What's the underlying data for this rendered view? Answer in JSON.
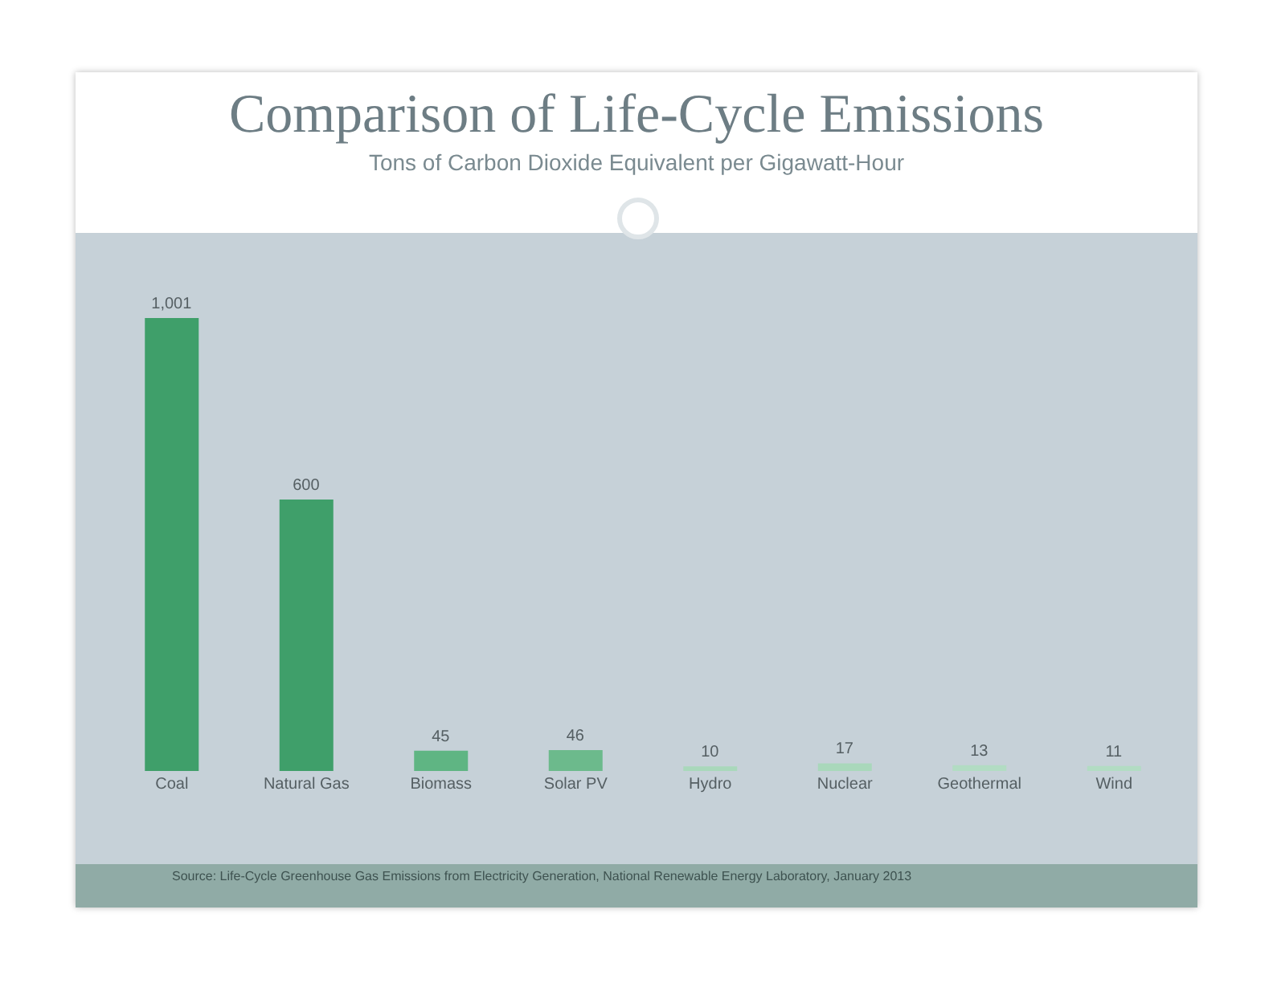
{
  "chart_data": {
    "type": "bar",
    "title": "Comparison of Life-Cycle Emissions",
    "subtitle": "Tons of Carbon Dioxide Equivalent per Gigawatt-Hour",
    "categories": [
      "Coal",
      "Natural Gas",
      "Biomass",
      "Solar PV",
      "Hydro",
      "Nuclear",
      "Geothermal",
      "Wind"
    ],
    "values": [
      1001,
      600,
      45,
      46,
      10,
      17,
      13,
      11
    ],
    "value_labels": [
      "1,001",
      "600",
      "45",
      "46",
      "10",
      "17",
      "13",
      "11"
    ],
    "colors": [
      "#3f9f6a",
      "#3f9f6a",
      "#5fb583",
      "#6cba8c",
      "#a9d8bb",
      "#a9d8bb",
      "#b2dcc3",
      "#b2dcc3"
    ],
    "annotations": [
      "Source: Life-Cycle Greenhouse Gas Emissions from Electricity Generation, National Renewable Energy Laboratory, January 2013"
    ]
  }
}
